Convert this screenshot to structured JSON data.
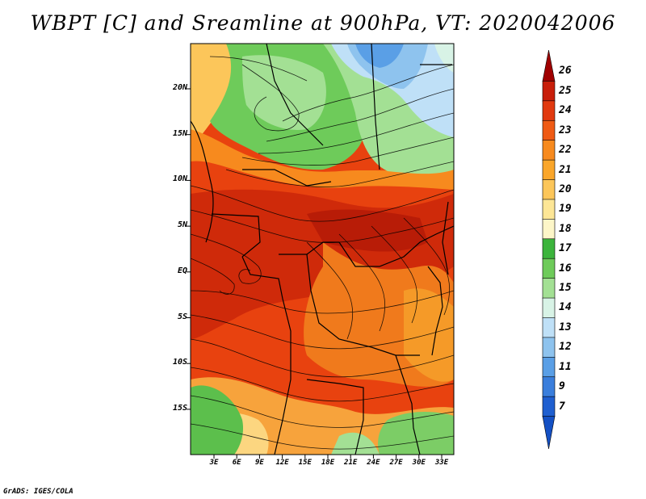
{
  "title": "WBPT [C] and Sreamline at 900hPa, VT: 2020042006",
  "footer": "GrADS: IGES/COLA",
  "lat_ticks": [
    "20N",
    "15N",
    "10N",
    "5N",
    "EQ",
    "5S",
    "10S",
    "15S"
  ],
  "lon_ticks": [
    "3E",
    "6E",
    "9E",
    "12E",
    "15E",
    "18E",
    "21E",
    "24E",
    "27E",
    "30E",
    "33E"
  ],
  "colorbar": {
    "labels": [
      "26",
      "25",
      "24",
      "23",
      "22",
      "21",
      "20",
      "19",
      "18",
      "17",
      "16",
      "15",
      "14",
      "13",
      "12",
      "11",
      "9",
      "7"
    ],
    "colors": [
      "#a00000",
      "#c81e0a",
      "#e1390f",
      "#ef5a14",
      "#f78a1e",
      "#faa62a",
      "#fcc65a",
      "#fde696",
      "#fdf6c8",
      "#3cb43c",
      "#6ecb5a",
      "#a3e094",
      "#d8f3e6",
      "#bfe0f7",
      "#8ec3ee",
      "#5a9fe6",
      "#3a7edc",
      "#1f5fd0",
      "#1450c4"
    ]
  }
}
